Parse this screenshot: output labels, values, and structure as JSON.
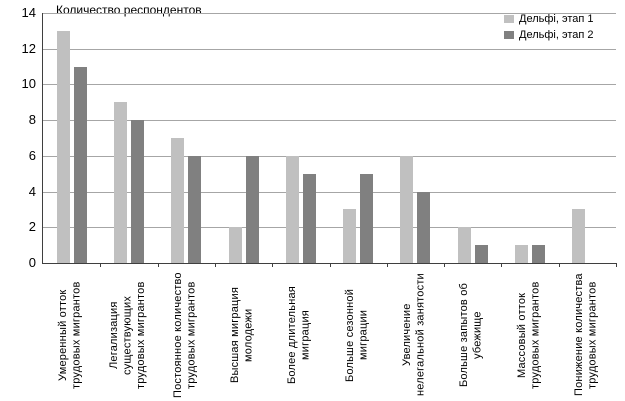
{
  "chart_data": {
    "type": "bar",
    "title": "Количество респондентов",
    "categories": [
      [
        "Умеренный отток",
        "трудовых мигрантов"
      ],
      [
        "Легализация",
        "существующих",
        "трудовых мигрантов"
      ],
      [
        "Постоянное количество",
        "трудовых мигрантов"
      ],
      [
        "Высшая миграция",
        "молодежи"
      ],
      [
        "Более длительная",
        "миграция"
      ],
      [
        "Больше сезонной",
        "миграции"
      ],
      [
        "Увеличение",
        "нелегальной занятости"
      ],
      [
        "Больше запытов об",
        "убежище"
      ],
      [
        "Массовый отток",
        "трудовых мигрантов"
      ],
      [
        "Понижение количества",
        "трудовых мигрантов"
      ]
    ],
    "series": [
      {
        "name": "Дельфі, этап 1",
        "color": "#c0c0c0",
        "values": [
          13,
          9,
          7,
          2,
          6,
          3,
          6,
          2,
          1,
          3
        ]
      },
      {
        "name": "Дельфі, этап 2",
        "color": "#808080",
        "values": [
          11,
          8,
          6,
          6,
          5,
          5,
          4,
          1,
          1,
          0
        ]
      }
    ],
    "xlabel": "",
    "ylabel": "",
    "ylim": [
      0,
      14
    ],
    "yticks": [
      0,
      2,
      4,
      6,
      8,
      10,
      12,
      14
    ],
    "grid": "horizontal",
    "legend_position": "top-right"
  },
  "colors": {
    "background": "#ffffff",
    "gridline": "#a6a6a6",
    "axis": "#3f3f3f",
    "text": "#000000"
  }
}
